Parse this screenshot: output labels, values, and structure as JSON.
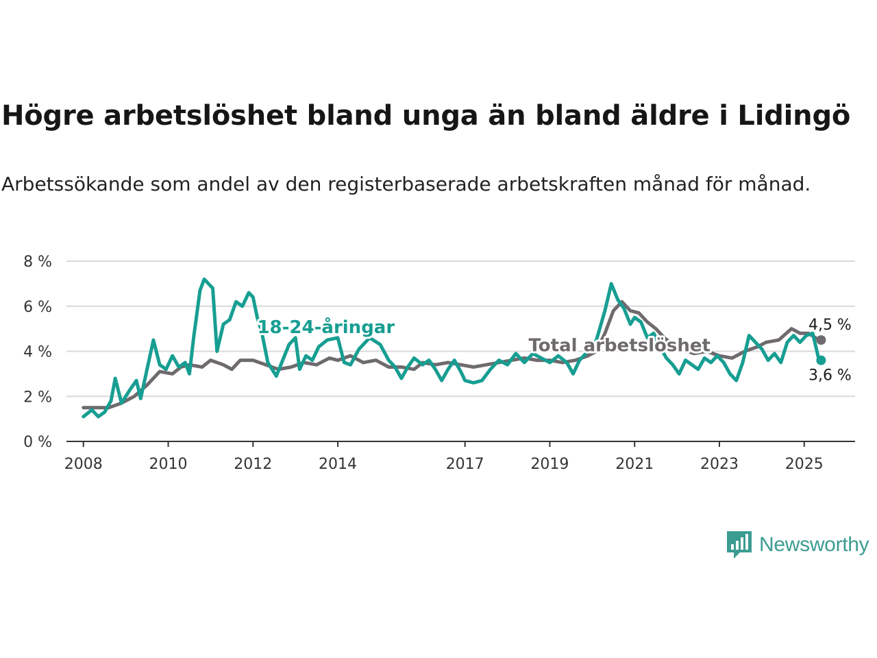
{
  "title": "Högre arbetslöshet bland unga än bland äldre i Lidingö",
  "subtitle": "Arbetssökande som andel av den registerbaserade arbetskraften månad för månad.",
  "logo": {
    "name": "Newsworthy",
    "icon": "bar-chart-speech-bubble-icon",
    "color": "#3b9c91"
  },
  "chart_data": {
    "type": "line",
    "ylim": [
      0,
      8
    ],
    "yticks": [
      {
        "v": 0,
        "label": "0 %"
      },
      {
        "v": 2,
        "label": "2 %"
      },
      {
        "v": 4,
        "label": "4 %"
      },
      {
        "v": 6,
        "label": "6 %"
      },
      {
        "v": 8,
        "label": "8 %"
      }
    ],
    "xlim": [
      2007.6,
      2026.2
    ],
    "xticks": [
      {
        "v": 2008,
        "label": "2008"
      },
      {
        "v": 2010,
        "label": "2010"
      },
      {
        "v": 2012,
        "label": "2012"
      },
      {
        "v": 2014,
        "label": "2014"
      },
      {
        "v": 2017,
        "label": "2017"
      },
      {
        "v": 2019,
        "label": "2019"
      },
      {
        "v": 2021,
        "label": "2021"
      },
      {
        "v": 2023,
        "label": "2023"
      },
      {
        "v": 2025,
        "label": "2025"
      }
    ],
    "grid": true,
    "series": [
      {
        "name": "Total arbetslöshet",
        "color": "#6e6a6e",
        "end_label": "4,5 %",
        "points": [
          [
            2008.0,
            1.5
          ],
          [
            2008.3,
            1.5
          ],
          [
            2008.6,
            1.5
          ],
          [
            2008.9,
            1.7
          ],
          [
            2009.2,
            2.0
          ],
          [
            2009.5,
            2.5
          ],
          [
            2009.8,
            3.1
          ],
          [
            2010.1,
            3.0
          ],
          [
            2010.3,
            3.3
          ],
          [
            2010.5,
            3.4
          ],
          [
            2010.8,
            3.3
          ],
          [
            2011.0,
            3.6
          ],
          [
            2011.3,
            3.4
          ],
          [
            2011.5,
            3.2
          ],
          [
            2011.7,
            3.6
          ],
          [
            2012.0,
            3.6
          ],
          [
            2012.3,
            3.4
          ],
          [
            2012.6,
            3.2
          ],
          [
            2012.9,
            3.3
          ],
          [
            2013.2,
            3.5
          ],
          [
            2013.5,
            3.4
          ],
          [
            2013.8,
            3.7
          ],
          [
            2014.0,
            3.6
          ],
          [
            2014.3,
            3.8
          ],
          [
            2014.6,
            3.5
          ],
          [
            2014.9,
            3.6
          ],
          [
            2015.2,
            3.3
          ],
          [
            2015.5,
            3.3
          ],
          [
            2015.8,
            3.2
          ],
          [
            2016.0,
            3.5
          ],
          [
            2016.3,
            3.4
          ],
          [
            2016.6,
            3.5
          ],
          [
            2016.9,
            3.4
          ],
          [
            2017.2,
            3.3
          ],
          [
            2017.5,
            3.4
          ],
          [
            2017.8,
            3.5
          ],
          [
            2018.1,
            3.6
          ],
          [
            2018.4,
            3.7
          ],
          [
            2018.7,
            3.6
          ],
          [
            2019.0,
            3.6
          ],
          [
            2019.3,
            3.5
          ],
          [
            2019.6,
            3.6
          ],
          [
            2019.9,
            3.8
          ],
          [
            2020.1,
            4.0
          ],
          [
            2020.3,
            4.8
          ],
          [
            2020.5,
            5.8
          ],
          [
            2020.7,
            6.2
          ],
          [
            2020.9,
            5.8
          ],
          [
            2021.1,
            5.7
          ],
          [
            2021.3,
            5.3
          ],
          [
            2021.5,
            5.0
          ],
          [
            2021.7,
            4.6
          ],
          [
            2021.9,
            4.3
          ],
          [
            2022.1,
            4.1
          ],
          [
            2022.4,
            3.9
          ],
          [
            2022.7,
            4.0
          ],
          [
            2023.0,
            3.8
          ],
          [
            2023.3,
            3.7
          ],
          [
            2023.6,
            4.0
          ],
          [
            2023.9,
            4.2
          ],
          [
            2024.1,
            4.4
          ],
          [
            2024.4,
            4.5
          ],
          [
            2024.7,
            5.0
          ],
          [
            2024.9,
            4.8
          ],
          [
            2025.1,
            4.8
          ],
          [
            2025.35,
            4.5
          ]
        ]
      },
      {
        "name": "18-24-åringar",
        "color": "#179e92",
        "end_label": "3,6 %",
        "points": [
          [
            2008.0,
            1.1
          ],
          [
            2008.2,
            1.4
          ],
          [
            2008.35,
            1.1
          ],
          [
            2008.5,
            1.3
          ],
          [
            2008.65,
            1.8
          ],
          [
            2008.75,
            2.8
          ],
          [
            2008.9,
            1.7
          ],
          [
            2009.1,
            2.3
          ],
          [
            2009.25,
            2.7
          ],
          [
            2009.35,
            1.9
          ],
          [
            2009.5,
            3.2
          ],
          [
            2009.65,
            4.5
          ],
          [
            2009.8,
            3.4
          ],
          [
            2009.95,
            3.2
          ],
          [
            2010.1,
            3.8
          ],
          [
            2010.25,
            3.3
          ],
          [
            2010.4,
            3.5
          ],
          [
            2010.5,
            3.0
          ],
          [
            2010.6,
            4.6
          ],
          [
            2010.75,
            6.7
          ],
          [
            2010.85,
            7.2
          ],
          [
            2010.95,
            7.0
          ],
          [
            2011.05,
            6.8
          ],
          [
            2011.15,
            4.0
          ],
          [
            2011.3,
            5.2
          ],
          [
            2011.45,
            5.4
          ],
          [
            2011.6,
            6.2
          ],
          [
            2011.75,
            6.0
          ],
          [
            2011.9,
            6.6
          ],
          [
            2012.0,
            6.4
          ],
          [
            2012.1,
            5.5
          ],
          [
            2012.2,
            4.9
          ],
          [
            2012.35,
            3.5
          ],
          [
            2012.45,
            3.2
          ],
          [
            2012.55,
            2.9
          ],
          [
            2012.7,
            3.6
          ],
          [
            2012.85,
            4.3
          ],
          [
            2013.0,
            4.6
          ],
          [
            2013.1,
            3.2
          ],
          [
            2013.25,
            3.8
          ],
          [
            2013.4,
            3.6
          ],
          [
            2013.55,
            4.2
          ],
          [
            2013.75,
            4.5
          ],
          [
            2014.0,
            4.6
          ],
          [
            2014.15,
            3.5
          ],
          [
            2014.3,
            3.4
          ],
          [
            2014.5,
            4.1
          ],
          [
            2014.75,
            4.6
          ],
          [
            2015.0,
            4.3
          ],
          [
            2015.2,
            3.6
          ],
          [
            2015.35,
            3.3
          ],
          [
            2015.5,
            2.8
          ],
          [
            2015.65,
            3.3
          ],
          [
            2015.8,
            3.7
          ],
          [
            2016.0,
            3.4
          ],
          [
            2016.15,
            3.6
          ],
          [
            2016.3,
            3.2
          ],
          [
            2016.45,
            2.7
          ],
          [
            2016.6,
            3.2
          ],
          [
            2016.75,
            3.6
          ],
          [
            2016.9,
            3.1
          ],
          [
            2017.0,
            2.7
          ],
          [
            2017.2,
            2.6
          ],
          [
            2017.4,
            2.7
          ],
          [
            2017.6,
            3.2
          ],
          [
            2017.8,
            3.6
          ],
          [
            2018.0,
            3.4
          ],
          [
            2018.2,
            3.9
          ],
          [
            2018.4,
            3.5
          ],
          [
            2018.6,
            3.9
          ],
          [
            2018.8,
            3.7
          ],
          [
            2019.0,
            3.5
          ],
          [
            2019.2,
            3.8
          ],
          [
            2019.4,
            3.5
          ],
          [
            2019.55,
            3.0
          ],
          [
            2019.7,
            3.6
          ],
          [
            2019.9,
            4.0
          ],
          [
            2020.1,
            4.5
          ],
          [
            2020.3,
            5.8
          ],
          [
            2020.45,
            7.0
          ],
          [
            2020.6,
            6.3
          ],
          [
            2020.75,
            5.9
          ],
          [
            2020.9,
            5.2
          ],
          [
            2021.0,
            5.5
          ],
          [
            2021.15,
            5.3
          ],
          [
            2021.3,
            4.6
          ],
          [
            2021.45,
            4.8
          ],
          [
            2021.6,
            4.2
          ],
          [
            2021.75,
            3.7
          ],
          [
            2021.9,
            3.4
          ],
          [
            2022.05,
            3.0
          ],
          [
            2022.2,
            3.6
          ],
          [
            2022.35,
            3.4
          ],
          [
            2022.5,
            3.2
          ],
          [
            2022.65,
            3.7
          ],
          [
            2022.8,
            3.5
          ],
          [
            2022.95,
            3.8
          ],
          [
            2023.1,
            3.5
          ],
          [
            2023.25,
            3.0
          ],
          [
            2023.4,
            2.7
          ],
          [
            2023.55,
            3.5
          ],
          [
            2023.7,
            4.7
          ],
          [
            2023.85,
            4.4
          ],
          [
            2024.0,
            4.1
          ],
          [
            2024.15,
            3.6
          ],
          [
            2024.3,
            3.9
          ],
          [
            2024.45,
            3.5
          ],
          [
            2024.6,
            4.4
          ],
          [
            2024.75,
            4.7
          ],
          [
            2024.9,
            4.4
          ],
          [
            2025.05,
            4.7
          ],
          [
            2025.2,
            4.8
          ],
          [
            2025.35,
            3.6
          ]
        ]
      }
    ],
    "series_labels": [
      {
        "series": 1,
        "text": "18-24-åringar",
        "at": [
          2012.1,
          4.8
        ]
      },
      {
        "series": 0,
        "text": "Total arbetslöshet",
        "at": [
          2018.5,
          4.0
        ]
      }
    ]
  }
}
